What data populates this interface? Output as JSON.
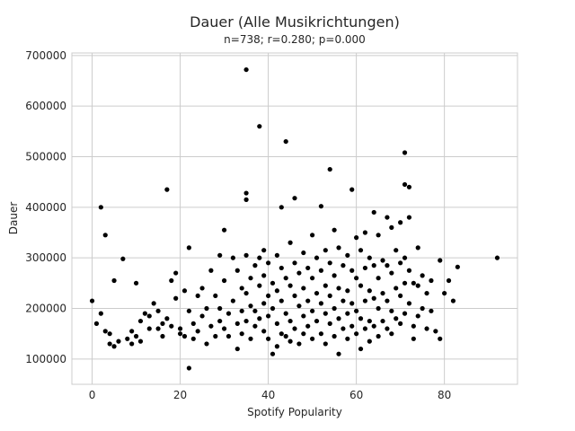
{
  "chart_data": {
    "type": "scatter",
    "title": "Dauer (Alle Musikrichtungen)",
    "subtitle": "n=738; r=0.280; p=0.000",
    "xlabel": "Spotify Popularity",
    "ylabel": "Dauer",
    "xlim": [
      -4.6,
      96.6
    ],
    "ylim": [
      50000,
      705000
    ],
    "xticks": [
      0,
      20,
      40,
      60,
      80
    ],
    "yticks": [
      100000,
      200000,
      300000,
      400000,
      500000,
      600000,
      700000
    ],
    "grid": true,
    "marker_color": "#000000",
    "points": [
      [
        0,
        215000
      ],
      [
        1,
        170000
      ],
      [
        2,
        400000
      ],
      [
        2,
        190000
      ],
      [
        3,
        345000
      ],
      [
        3,
        155000
      ],
      [
        4,
        150000
      ],
      [
        4,
        130000
      ],
      [
        5,
        255000
      ],
      [
        5,
        125000
      ],
      [
        6,
        135000
      ],
      [
        7,
        298000
      ],
      [
        8,
        140000
      ],
      [
        9,
        130000
      ],
      [
        9,
        155000
      ],
      [
        10,
        250000
      ],
      [
        10,
        145000
      ],
      [
        11,
        175000
      ],
      [
        11,
        135000
      ],
      [
        12,
        190000
      ],
      [
        13,
        160000
      ],
      [
        13,
        185000
      ],
      [
        14,
        210000
      ],
      [
        15,
        195000
      ],
      [
        15,
        160000
      ],
      [
        16,
        170000
      ],
      [
        16,
        145000
      ],
      [
        17,
        435000
      ],
      [
        17,
        180000
      ],
      [
        18,
        255000
      ],
      [
        18,
        165000
      ],
      [
        19,
        270000
      ],
      [
        19,
        220000
      ],
      [
        20,
        160000
      ],
      [
        20,
        150000
      ],
      [
        21,
        235000
      ],
      [
        21,
        145000
      ],
      [
        22,
        82000
      ],
      [
        22,
        320000
      ],
      [
        22,
        195000
      ],
      [
        23,
        170000
      ],
      [
        23,
        140000
      ],
      [
        24,
        225000
      ],
      [
        24,
        155000
      ],
      [
        25,
        240000
      ],
      [
        25,
        185000
      ],
      [
        26,
        200000
      ],
      [
        26,
        130000
      ],
      [
        27,
        275000
      ],
      [
        27,
        165000
      ],
      [
        28,
        225000
      ],
      [
        28,
        145000
      ],
      [
        29,
        305000
      ],
      [
        29,
        175000
      ],
      [
        29,
        200000
      ],
      [
        30,
        355000
      ],
      [
        30,
        255000
      ],
      [
        30,
        160000
      ],
      [
        31,
        190000
      ],
      [
        31,
        145000
      ],
      [
        32,
        300000
      ],
      [
        32,
        215000
      ],
      [
        33,
        275000
      ],
      [
        33,
        170000
      ],
      [
        33,
        120000
      ],
      [
        34,
        240000
      ],
      [
        34,
        195000
      ],
      [
        34,
        150000
      ],
      [
        35,
        672000
      ],
      [
        35,
        428000
      ],
      [
        35,
        415000
      ],
      [
        35,
        305000
      ],
      [
        35,
        230000
      ],
      [
        35,
        175000
      ],
      [
        36,
        260000
      ],
      [
        36,
        205000
      ],
      [
        36,
        140000
      ],
      [
        37,
        285000
      ],
      [
        37,
        195000
      ],
      [
        37,
        165000
      ],
      [
        38,
        560000
      ],
      [
        38,
        300000
      ],
      [
        38,
        245000
      ],
      [
        38,
        180000
      ],
      [
        39,
        315000
      ],
      [
        39,
        265000
      ],
      [
        39,
        210000
      ],
      [
        39,
        155000
      ],
      [
        40,
        290000
      ],
      [
        40,
        225000
      ],
      [
        40,
        185000
      ],
      [
        40,
        140000
      ],
      [
        41,
        250000
      ],
      [
        41,
        200000
      ],
      [
        41,
        110000
      ],
      [
        42,
        305000
      ],
      [
        42,
        235000
      ],
      [
        42,
        170000
      ],
      [
        42,
        125000
      ],
      [
        43,
        400000
      ],
      [
        43,
        280000
      ],
      [
        43,
        215000
      ],
      [
        43,
        150000
      ],
      [
        44,
        530000
      ],
      [
        44,
        260000
      ],
      [
        44,
        190000
      ],
      [
        44,
        145000
      ],
      [
        45,
        330000
      ],
      [
        45,
        245000
      ],
      [
        45,
        175000
      ],
      [
        45,
        135000
      ],
      [
        46,
        418000
      ],
      [
        46,
        290000
      ],
      [
        46,
        225000
      ],
      [
        46,
        160000
      ],
      [
        47,
        270000
      ],
      [
        47,
        205000
      ],
      [
        47,
        130000
      ],
      [
        48,
        310000
      ],
      [
        48,
        240000
      ],
      [
        48,
        185000
      ],
      [
        48,
        150000
      ],
      [
        49,
        280000
      ],
      [
        49,
        215000
      ],
      [
        49,
        165000
      ],
      [
        50,
        345000
      ],
      [
        50,
        260000
      ],
      [
        50,
        195000
      ],
      [
        50,
        140000
      ],
      [
        51,
        300000
      ],
      [
        51,
        230000
      ],
      [
        51,
        175000
      ],
      [
        52,
        402000
      ],
      [
        52,
        275000
      ],
      [
        52,
        210000
      ],
      [
        52,
        150000
      ],
      [
        53,
        315000
      ],
      [
        53,
        245000
      ],
      [
        53,
        190000
      ],
      [
        53,
        130000
      ],
      [
        54,
        475000
      ],
      [
        54,
        290000
      ],
      [
        54,
        225000
      ],
      [
        54,
        170000
      ],
      [
        55,
        355000
      ],
      [
        55,
        265000
      ],
      [
        55,
        200000
      ],
      [
        55,
        145000
      ],
      [
        56,
        320000
      ],
      [
        56,
        240000
      ],
      [
        56,
        180000
      ],
      [
        56,
        110000
      ],
      [
        57,
        285000
      ],
      [
        57,
        215000
      ],
      [
        57,
        160000
      ],
      [
        58,
        305000
      ],
      [
        58,
        235000
      ],
      [
        58,
        190000
      ],
      [
        58,
        140000
      ],
      [
        59,
        435000
      ],
      [
        59,
        275000
      ],
      [
        59,
        210000
      ],
      [
        59,
        165000
      ],
      [
        60,
        340000
      ],
      [
        60,
        260000
      ],
      [
        60,
        195000
      ],
      [
        60,
        150000
      ],
      [
        61,
        315000
      ],
      [
        61,
        245000
      ],
      [
        61,
        180000
      ],
      [
        61,
        120000
      ],
      [
        62,
        350000
      ],
      [
        62,
        280000
      ],
      [
        62,
        215000
      ],
      [
        62,
        160000
      ],
      [
        63,
        300000
      ],
      [
        63,
        235000
      ],
      [
        63,
        175000
      ],
      [
        63,
        135000
      ],
      [
        64,
        390000
      ],
      [
        64,
        285000
      ],
      [
        64,
        220000
      ],
      [
        64,
        165000
      ],
      [
        65,
        345000
      ],
      [
        65,
        260000
      ],
      [
        65,
        200000
      ],
      [
        65,
        145000
      ],
      [
        66,
        295000
      ],
      [
        66,
        230000
      ],
      [
        66,
        175000
      ],
      [
        67,
        380000
      ],
      [
        67,
        285000
      ],
      [
        67,
        215000
      ],
      [
        67,
        160000
      ],
      [
        68,
        360000
      ],
      [
        68,
        270000
      ],
      [
        68,
        195000
      ],
      [
        68,
        150000
      ],
      [
        69,
        315000
      ],
      [
        69,
        240000
      ],
      [
        69,
        180000
      ],
      [
        70,
        370000
      ],
      [
        70,
        290000
      ],
      [
        70,
        225000
      ],
      [
        70,
        170000
      ],
      [
        71,
        508000
      ],
      [
        71,
        445000
      ],
      [
        71,
        300000
      ],
      [
        71,
        250000
      ],
      [
        71,
        190000
      ],
      [
        72,
        380000
      ],
      [
        72,
        440000
      ],
      [
        72,
        275000
      ],
      [
        72,
        210000
      ],
      [
        73,
        250000
      ],
      [
        73,
        165000
      ],
      [
        73,
        140000
      ],
      [
        74,
        320000
      ],
      [
        74,
        245000
      ],
      [
        74,
        185000
      ],
      [
        75,
        265000
      ],
      [
        75,
        200000
      ],
      [
        76,
        230000
      ],
      [
        76,
        160000
      ],
      [
        77,
        255000
      ],
      [
        77,
        195000
      ],
      [
        78,
        155000
      ],
      [
        79,
        295000
      ],
      [
        79,
        140000
      ],
      [
        80,
        230000
      ],
      [
        81,
        255000
      ],
      [
        82,
        215000
      ],
      [
        83,
        282000
      ],
      [
        92,
        300000
      ]
    ]
  }
}
